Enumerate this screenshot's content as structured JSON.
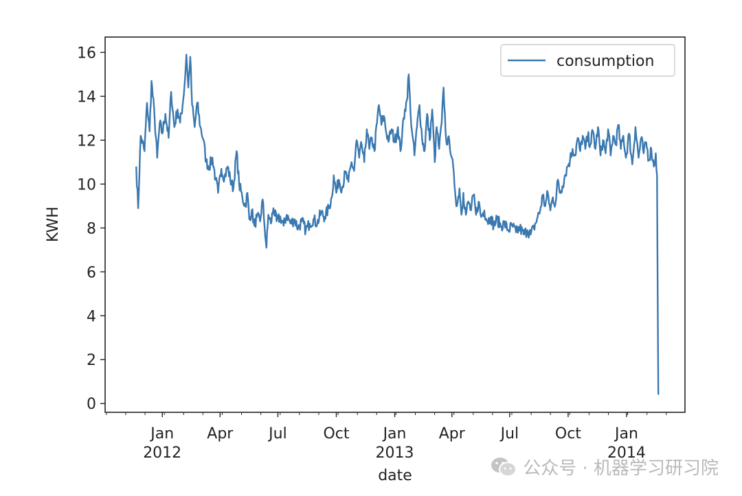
{
  "chart_data": {
    "type": "line",
    "title": "",
    "xlabel": "date",
    "ylabel": "KWH",
    "ylim": [
      -0.4,
      16.7
    ],
    "xlim_days": [
      -90,
      823
    ],
    "x_ticks": [
      {
        "label": "Jan",
        "sublabel": "2012",
        "day": 0
      },
      {
        "label": "Apr",
        "sublabel": "",
        "day": 91
      },
      {
        "label": "Jul",
        "sublabel": "",
        "day": 182
      },
      {
        "label": "Oct",
        "sublabel": "",
        "day": 274
      },
      {
        "label": "Jan",
        "sublabel": "2013",
        "day": 366
      },
      {
        "label": "Apr",
        "sublabel": "",
        "day": 456
      },
      {
        "label": "Jul",
        "sublabel": "",
        "day": 547
      },
      {
        "label": "Oct",
        "sublabel": "",
        "day": 639
      },
      {
        "label": "Jan",
        "sublabel": "2014",
        "day": 731
      }
    ],
    "y_ticks": [
      0,
      2,
      4,
      6,
      8,
      10,
      12,
      14,
      16
    ],
    "legend": {
      "position": "top-right",
      "entries": [
        "consumption"
      ]
    },
    "grid": false,
    "series": [
      {
        "name": "consumption",
        "color": "#3a78b0",
        "anchor_points": [
          [
            -41,
            10.8
          ],
          [
            -38,
            8.9
          ],
          [
            -34,
            12.2
          ],
          [
            -28,
            11.5
          ],
          [
            -24,
            13.7
          ],
          [
            -20,
            12.4
          ],
          [
            -17,
            14.7
          ],
          [
            -12,
            13.0
          ],
          [
            -8,
            11.2
          ],
          [
            -4,
            12.8
          ],
          [
            0,
            12.3
          ],
          [
            5,
            13.2
          ],
          [
            10,
            12.1
          ],
          [
            14,
            14.2
          ],
          [
            19,
            12.6
          ],
          [
            24,
            13.4
          ],
          [
            28,
            12.8
          ],
          [
            32,
            13.6
          ],
          [
            35,
            14.5
          ],
          [
            38,
            15.9
          ],
          [
            41,
            14.4
          ],
          [
            44,
            15.8
          ],
          [
            47,
            13.6
          ],
          [
            51,
            12.6
          ],
          [
            55,
            13.7
          ],
          [
            60,
            12.6
          ],
          [
            65,
            12.0
          ],
          [
            69,
            11.0
          ],
          [
            74,
            10.8
          ],
          [
            79,
            11.2
          ],
          [
            84,
            10.2
          ],
          [
            88,
            9.6
          ],
          [
            93,
            10.7
          ],
          [
            98,
            10.3
          ],
          [
            103,
            10.8
          ],
          [
            107,
            10.2
          ],
          [
            112,
            9.8
          ],
          [
            117,
            11.5
          ],
          [
            121,
            10.0
          ],
          [
            126,
            9.4
          ],
          [
            131,
            9.0
          ],
          [
            134,
            9.6
          ],
          [
            137,
            8.4
          ],
          [
            141,
            8.8
          ],
          [
            145,
            8.1
          ],
          [
            149,
            8.5
          ],
          [
            154,
            8.3
          ],
          [
            158,
            9.3
          ],
          [
            161,
            8.1
          ],
          [
            164,
            7.1
          ],
          [
            167,
            8.6
          ],
          [
            171,
            8.2
          ],
          [
            175,
            8.9
          ],
          [
            180,
            8.3
          ],
          [
            186,
            8.5
          ],
          [
            191,
            8.1
          ],
          [
            196,
            8.6
          ],
          [
            202,
            8.2
          ],
          [
            208,
            8.4
          ],
          [
            214,
            8.0
          ],
          [
            220,
            8.3
          ],
          [
            226,
            7.9
          ],
          [
            232,
            8.2
          ],
          [
            238,
            8.4
          ],
          [
            244,
            8.2
          ],
          [
            250,
            8.7
          ],
          [
            256,
            8.5
          ],
          [
            262,
            8.9
          ],
          [
            267,
            9.4
          ],
          [
            270,
            10.4
          ],
          [
            274,
            9.6
          ],
          [
            278,
            10.2
          ],
          [
            283,
            9.8
          ],
          [
            288,
            10.5
          ],
          [
            293,
            10.1
          ],
          [
            298,
            11.0
          ],
          [
            302,
            10.6
          ],
          [
            306,
            12.0
          ],
          [
            310,
            11.2
          ],
          [
            314,
            11.8
          ],
          [
            318,
            11.0
          ],
          [
            322,
            12.5
          ],
          [
            326,
            11.6
          ],
          [
            330,
            12.1
          ],
          [
            334,
            11.5
          ],
          [
            338,
            12.8
          ],
          [
            341,
            13.6
          ],
          [
            345,
            12.7
          ],
          [
            349,
            13.1
          ],
          [
            353,
            12.3
          ],
          [
            357,
            12.0
          ],
          [
            361,
            12.5
          ],
          [
            366,
            11.9
          ],
          [
            371,
            12.6
          ],
          [
            375,
            11.5
          ],
          [
            378,
            12.4
          ],
          [
            382,
            13.4
          ],
          [
            385,
            13.8
          ],
          [
            388,
            15.0
          ],
          [
            391,
            13.2
          ],
          [
            394,
            12.2
          ],
          [
            397,
            11.3
          ],
          [
            401,
            12.6
          ],
          [
            405,
            13.6
          ],
          [
            409,
            12.1
          ],
          [
            413,
            11.5
          ],
          [
            417,
            13.2
          ],
          [
            421,
            12.0
          ],
          [
            425,
            13.4
          ],
          [
            429,
            11.0
          ],
          [
            432,
            12.6
          ],
          [
            436,
            11.6
          ],
          [
            440,
            12.8
          ],
          [
            443,
            14.4
          ],
          [
            446,
            12.4
          ],
          [
            449,
            11.8
          ],
          [
            452,
            12.0
          ],
          [
            456,
            11.2
          ],
          [
            460,
            10.0
          ],
          [
            464,
            9.0
          ],
          [
            468,
            9.8
          ],
          [
            471,
            8.6
          ],
          [
            474,
            9.6
          ],
          [
            478,
            8.6
          ],
          [
            482,
            9.2
          ],
          [
            486,
            8.8
          ],
          [
            490,
            9.5
          ],
          [
            494,
            8.6
          ],
          [
            498,
            9.2
          ],
          [
            502,
            8.5
          ],
          [
            507,
            8.8
          ],
          [
            512,
            8.3
          ],
          [
            517,
            8.5
          ],
          [
            522,
            8.1
          ],
          [
            527,
            8.4
          ],
          [
            533,
            8.1
          ],
          [
            539,
            8.2
          ],
          [
            545,
            7.9
          ],
          [
            551,
            8.1
          ],
          [
            557,
            7.8
          ],
          [
            563,
            8.0
          ],
          [
            569,
            7.7
          ],
          [
            575,
            7.9
          ],
          [
            580,
            7.7
          ],
          [
            585,
            8.0
          ],
          [
            590,
            8.4
          ],
          [
            595,
            8.8
          ],
          [
            599,
            9.5
          ],
          [
            603,
            9.0
          ],
          [
            607,
            9.6
          ],
          [
            611,
            8.8
          ],
          [
            615,
            9.4
          ],
          [
            619,
            9.1
          ],
          [
            623,
            10.2
          ],
          [
            626,
            9.6
          ],
          [
            630,
            9.9
          ],
          [
            634,
            10.4
          ],
          [
            638,
            10.8
          ],
          [
            642,
            11.1
          ],
          [
            646,
            11.6
          ],
          [
            650,
            11.3
          ],
          [
            654,
            12.1
          ],
          [
            658,
            11.5
          ],
          [
            662,
            12.2
          ],
          [
            666,
            11.6
          ],
          [
            670,
            12.2
          ],
          [
            674,
            11.8
          ],
          [
            678,
            12.4
          ],
          [
            682,
            11.6
          ],
          [
            686,
            12.6
          ],
          [
            690,
            11.3
          ],
          [
            694,
            12.0
          ],
          [
            698,
            11.4
          ],
          [
            702,
            12.5
          ],
          [
            706,
            11.3
          ],
          [
            710,
            12.2
          ],
          [
            714,
            11.8
          ],
          [
            718,
            12.7
          ],
          [
            722,
            11.6
          ],
          [
            726,
            12.2
          ],
          [
            730,
            11.2
          ],
          [
            735,
            12.3
          ],
          [
            740,
            10.9
          ],
          [
            745,
            12.6
          ],
          [
            750,
            11.2
          ],
          [
            754,
            12.1
          ],
          [
            758,
            11.4
          ],
          [
            762,
            11.9
          ],
          [
            766,
            11.1
          ],
          [
            770,
            11.6
          ],
          [
            774,
            10.8
          ],
          [
            777,
            11.4
          ],
          [
            779,
            10.4
          ],
          [
            781,
            0.4
          ]
        ]
      }
    ]
  },
  "watermark": {
    "text": "公众号 · 机器学习研习院",
    "icon": "wechat-icon"
  }
}
